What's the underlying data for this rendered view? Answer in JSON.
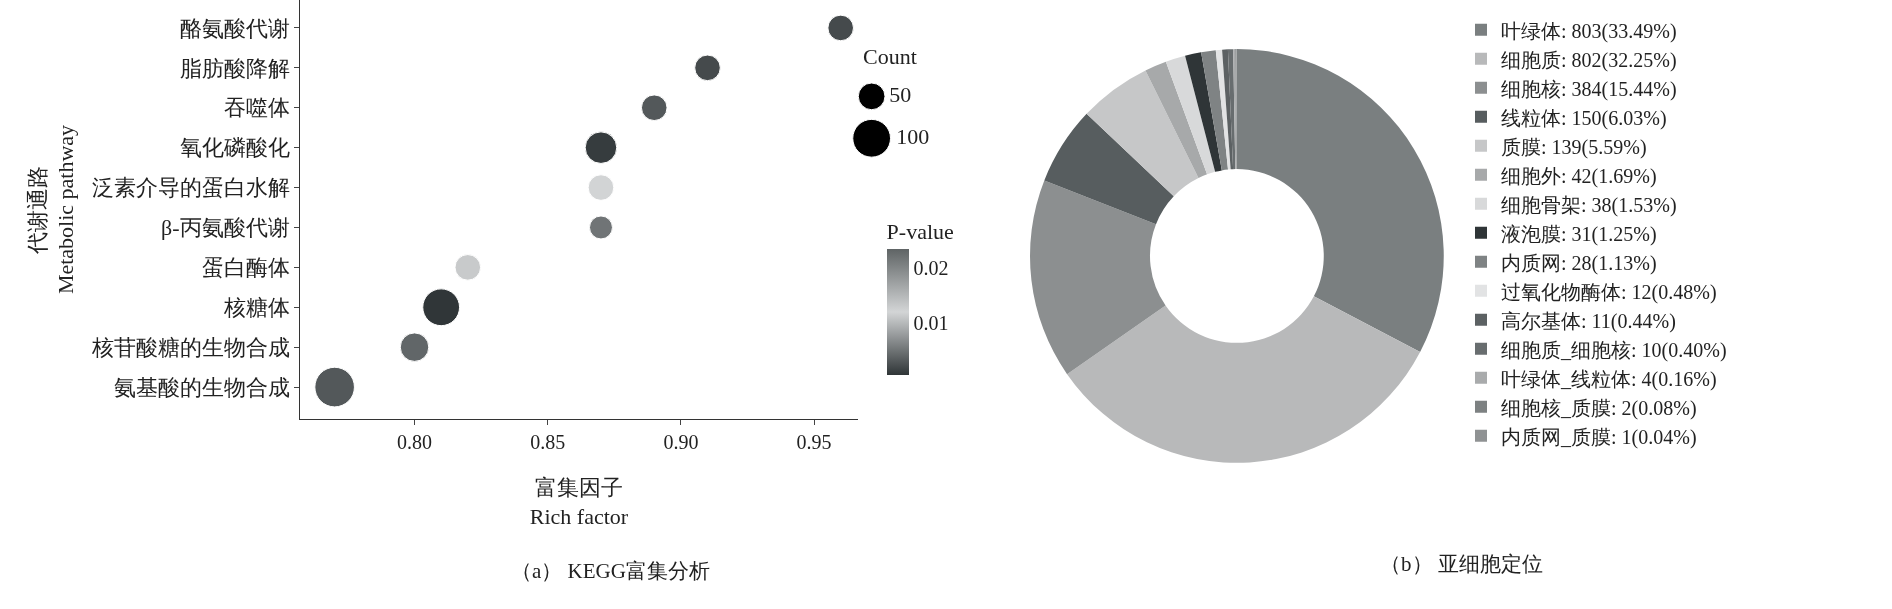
{
  "chart_data": [
    {
      "type": "bubble",
      "xlabel": "富集因子\nRich factor",
      "ylabel": "代谢通路\nMetabolic pathway",
      "legend_title": "Count",
      "clabel": "P-value",
      "categories": [
        "酪氨酸代谢",
        "脂肪酸降解",
        "吞噬体",
        "氧化磷酸化",
        "泛素介导的蛋白水解",
        "β-丙氨酸代谢",
        "蛋白酶体",
        "核糖体",
        "核苷酸糖的生物合成",
        "氨基酸的生物合成"
      ],
      "orientation": "horizontal",
      "values": [
        0.96,
        0.91,
        0.89,
        0.87,
        0.87,
        0.87,
        0.82,
        0.81,
        0.8,
        0.77
      ],
      "sizes": [
        46,
        46,
        46,
        70,
        46,
        37,
        46,
        95,
        57,
        110
      ],
      "cvalues": [
        0.002,
        0.002,
        0.003,
        0.001,
        0.012,
        0.005,
        0.013,
        0.0006,
        0.004,
        0.003
      ],
      "clim": [
        0.0005,
        0.0233
      ],
      "cticks": [
        {
          "value": 0.01,
          "label": "0.01"
        },
        {
          "value": 0.02,
          "label": "0.02"
        }
      ],
      "size_legend": [
        50,
        100
      ],
      "xlim": [
        0.757,
        0.9665
      ],
      "xticks": [
        {
          "value": 0.8,
          "label": "0.80"
        },
        {
          "value": 0.85,
          "label": "0.85"
        },
        {
          "value": 0.9,
          "label": "0.90"
        },
        {
          "value": 0.95,
          "label": "0.95"
        }
      ],
      "grid": false,
      "annotations": [
        "（a） KEGG富集分析"
      ]
    },
    {
      "type": "donut",
      "legend": "right",
      "categories": [
        "叶绿体: 803(33.49%)",
        "细胞质: 802(32.25%)",
        "细胞核: 384(15.44%)",
        "线粒体: 150(6.03%)",
        "质膜: 139(5.59%)",
        "细胞外: 42(1.69%)",
        "细胞骨架: 38(1.53%)",
        "液泡膜: 31(1.25%)",
        "内质网: 28(1.13%)",
        "过氧化物酶体: 12(0.48%)",
        "高尔基体: 11(0.44%)",
        "细胞质_细胞核: 10(0.40%)",
        "叶绿体_线粒体: 4(0.16%)",
        "细胞核_质膜: 2(0.08%)",
        "内质网_质膜: 1(0.04%)"
      ],
      "values": [
        803,
        802,
        384,
        150,
        139,
        42,
        38,
        31,
        28,
        12,
        11,
        10,
        4,
        2,
        1
      ],
      "colors": [
        "#7a7f80",
        "#b8b9ba",
        "#8c8f90",
        "#575d5f",
        "#c6c7c8",
        "#a7a9aa",
        "#d8d9da",
        "#2f3537",
        "#7f8384",
        "#e2e3e4",
        "#5c6163",
        "#686d6f",
        "#a9abac",
        "#7d8182",
        "#8f9293"
      ],
      "annotations": [
        "（b） 亚细胞定位"
      ]
    }
  ]
}
